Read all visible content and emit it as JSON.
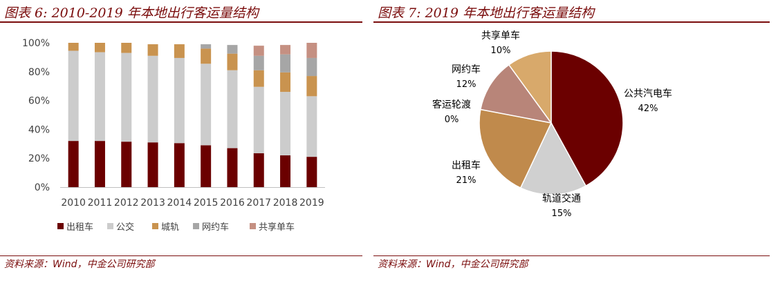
{
  "left": {
    "title": "图表 6: 2010-2019 年本地出行客运量结构",
    "source": "资料来源：Wind，中金公司研究部"
  },
  "right": {
    "title": "图表 7: 2019 年本地出行客运量结构",
    "source": "资料来源：Wind，中金公司研究部"
  },
  "chart_data": [
    {
      "type": "bar",
      "stacked": true,
      "categories": [
        "2010",
        "2011",
        "2012",
        "2013",
        "2014",
        "2015",
        "2016",
        "2017",
        "2018",
        "2019"
      ],
      "y_ticks": [
        "0%",
        "20%",
        "40%",
        "60%",
        "80%",
        "100%"
      ],
      "ylim": [
        0,
        100
      ],
      "legend_position": "bottom",
      "series": [
        {
          "name": "出租车",
          "color": "#6b0000",
          "values": [
            32,
            32,
            31.5,
            31,
            30.5,
            29,
            27,
            23.5,
            22,
            21
          ]
        },
        {
          "name": "公交",
          "color": "#cccccc",
          "values": [
            62.5,
            61.5,
            61.5,
            60,
            59,
            56.5,
            54,
            46,
            44,
            42
          ]
        },
        {
          "name": "城轨",
          "color": "#c9934f",
          "values": [
            5.5,
            6.5,
            7,
            8,
            9.5,
            10.5,
            11.5,
            11.5,
            13.5,
            14
          ]
        },
        {
          "name": "网约车",
          "color": "#a6a6a6",
          "values": [
            0,
            0,
            0,
            0,
            0,
            3,
            6,
            10,
            12.5,
            12.5
          ]
        },
        {
          "name": "共享单车",
          "color": "#c59082",
          "values": [
            0,
            0,
            0,
            0,
            0,
            0,
            0,
            7,
            6.5,
            10.5
          ]
        }
      ]
    },
    {
      "type": "pie",
      "slices": [
        {
          "label": "公共汽电车",
          "pct_label": "42%",
          "value": 42,
          "color": "#6b0000"
        },
        {
          "label": "轨道交通",
          "pct_label": "15%",
          "value": 15,
          "color": "#d0d0d0"
        },
        {
          "label": "出租车",
          "pct_label": "21%",
          "value": 21,
          "color": "#c08a4c"
        },
        {
          "label": "客运轮渡",
          "pct_label": "0%",
          "value": 0,
          "color": "#999999"
        },
        {
          "label": "网约车",
          "pct_label": "12%",
          "value": 12,
          "color": "#b88579"
        },
        {
          "label": "共享单车",
          "pct_label": "10%",
          "value": 10,
          "color": "#d8a96b"
        }
      ]
    }
  ]
}
